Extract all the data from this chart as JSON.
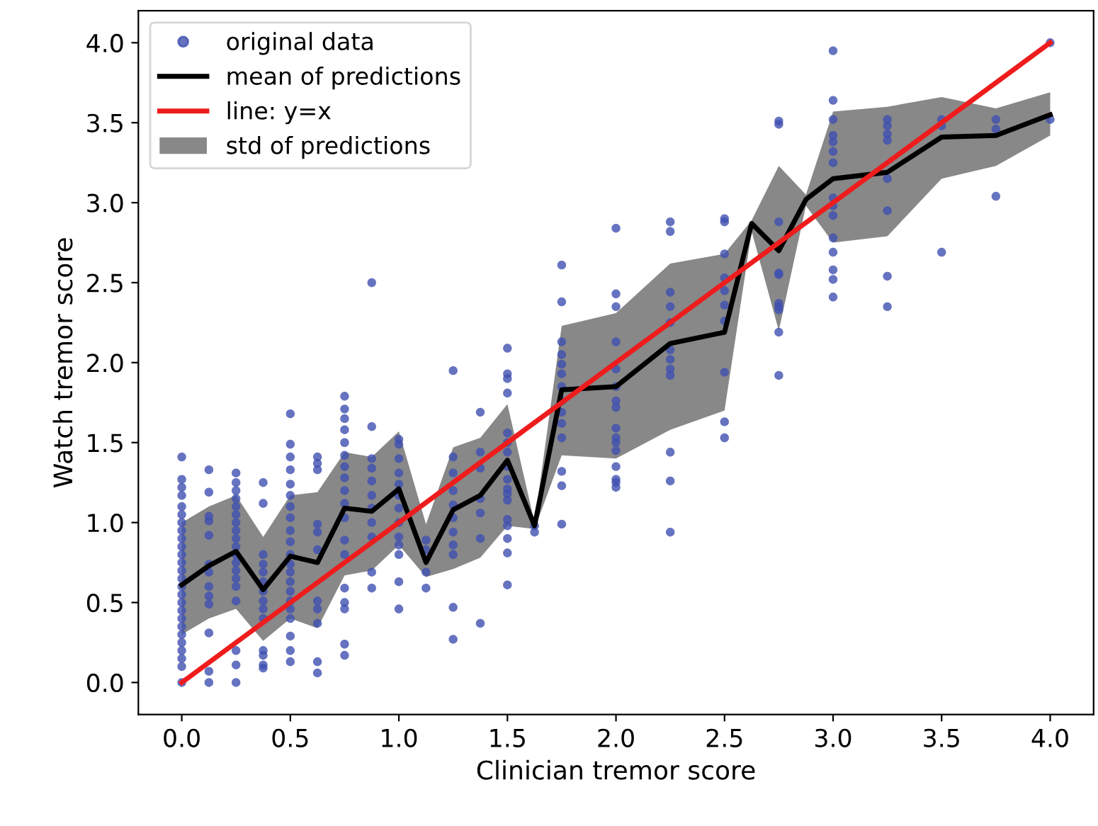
{
  "chart_data": {
    "type": "scatter",
    "xlabel": "Clinician tremor score",
    "ylabel": "Watch tremor score",
    "xlim": [
      -0.2,
      4.2
    ],
    "ylim": [
      -0.2,
      4.2
    ],
    "xticks": [
      {
        "value": 0,
        "label": "0.0"
      },
      {
        "value": 0.5,
        "label": "0.5"
      },
      {
        "value": 1,
        "label": "1.0"
      },
      {
        "value": 1.5,
        "label": "1.5"
      },
      {
        "value": 2,
        "label": "2.0"
      },
      {
        "value": 2.5,
        "label": "2.5"
      },
      {
        "value": 3,
        "label": "3.0"
      },
      {
        "value": 3.5,
        "label": "3.5"
      },
      {
        "value": 4,
        "label": "4.0"
      }
    ],
    "yticks": [
      {
        "value": 0,
        "label": "0.0"
      },
      {
        "value": 0.5,
        "label": "0.5"
      },
      {
        "value": 1,
        "label": "1.0"
      },
      {
        "value": 1.5,
        "label": "1.5"
      },
      {
        "value": 2,
        "label": "2.0"
      },
      {
        "value": 2.5,
        "label": "2.5"
      },
      {
        "value": 3,
        "label": "3.0"
      },
      {
        "value": 3.5,
        "label": "3.5"
      },
      {
        "value": 4,
        "label": "4.0"
      }
    ],
    "grid": false,
    "legend": "top left",
    "series": [
      {
        "name": "original data",
        "color": "#4050b0",
        "marker": "circle",
        "x": [
          0,
          0,
          0,
          0,
          0,
          0,
          0,
          0,
          0,
          0,
          0,
          0,
          0,
          0,
          0,
          0,
          0,
          0,
          0,
          0,
          0,
          0,
          0,
          0,
          0,
          0,
          0.125,
          0.125,
          0.125,
          0.125,
          0.125,
          0.125,
          0.125,
          0.125,
          0.125,
          0.125,
          0.125,
          0.125,
          0.125,
          0.25,
          0.25,
          0.25,
          0.25,
          0.25,
          0.25,
          0.25,
          0.25,
          0.25,
          0.25,
          0.25,
          0.25,
          0.25,
          0.25,
          0.25,
          0.25,
          0.25,
          0.25,
          0.25,
          0.375,
          0.375,
          0.375,
          0.375,
          0.375,
          0.375,
          0.375,
          0.375,
          0.375,
          0.375,
          0.375,
          0.375,
          0.375,
          0.375,
          0.5,
          0.5,
          0.5,
          0.5,
          0.5,
          0.5,
          0.5,
          0.5,
          0.5,
          0.5,
          0.5,
          0.5,
          0.5,
          0.5,
          0.5,
          0.5,
          0.5,
          0.5,
          0.5,
          0.5,
          0.5,
          0.625,
          0.625,
          0.625,
          0.625,
          0.625,
          0.625,
          0.625,
          0.625,
          0.625,
          0.625,
          0.625,
          0.75,
          0.75,
          0.75,
          0.75,
          0.75,
          0.75,
          0.75,
          0.75,
          0.75,
          0.75,
          0.75,
          0.75,
          0.75,
          0.75,
          0.75,
          0.75,
          0.75,
          0.75,
          0.875,
          0.875,
          0.875,
          0.875,
          0.875,
          0.875,
          0.875,
          0.875,
          0.875,
          0.875,
          0.875,
          1.0,
          1.0,
          1.0,
          1.0,
          1.0,
          1.0,
          1.0,
          1.0,
          1.0,
          1.0,
          1.0,
          1.0,
          1.0,
          1.125,
          1.125,
          1.125,
          1.125,
          1.25,
          1.25,
          1.25,
          1.25,
          1.25,
          1.25,
          1.25,
          1.25,
          1.25,
          1.25,
          1.25,
          1.375,
          1.375,
          1.375,
          1.375,
          1.375,
          1.375,
          1.375,
          1.5,
          1.5,
          1.5,
          1.5,
          1.5,
          1.5,
          1.5,
          1.5,
          1.5,
          1.5,
          1.5,
          1.5,
          1.5,
          1.5,
          1.5,
          1.5,
          1.5,
          1.625,
          1.625,
          1.75,
          1.75,
          1.75,
          1.75,
          1.75,
          1.75,
          1.75,
          1.75,
          1.75,
          1.75,
          1.75,
          1.75,
          1.75,
          1.75,
          2.0,
          2.0,
          2.0,
          2.0,
          2.0,
          2.0,
          2.0,
          2.0,
          2.0,
          2.0,
          2.0,
          2.0,
          2.0,
          2.0,
          2.0,
          2.0,
          2.25,
          2.25,
          2.25,
          2.25,
          2.25,
          2.25,
          2.25,
          2.25,
          2.25,
          2.25,
          2.25,
          2.25,
          2.5,
          2.5,
          2.5,
          2.5,
          2.5,
          2.5,
          2.5,
          2.5,
          2.5,
          2.5,
          2.75,
          2.75,
          2.75,
          2.75,
          2.75,
          2.75,
          2.75,
          2.75,
          2.75,
          2.75,
          3.0,
          3.0,
          3.0,
          3.0,
          3.0,
          3.0,
          3.0,
          3.0,
          3.0,
          3.0,
          3.0,
          3.0,
          3.0,
          3.0,
          3.0,
          3.25,
          3.25,
          3.25,
          3.25,
          3.25,
          3.25,
          3.25,
          3.25,
          3.5,
          3.5,
          3.5,
          3.75,
          3.75,
          3.75,
          4.0,
          4.0
        ],
        "values": [
          1.41,
          1.27,
          1.22,
          1.17,
          1.1,
          1.05,
          1.0,
          0.95,
          0.9,
          0.85,
          0.8,
          0.75,
          0.7,
          0.65,
          0.6,
          0.55,
          0.5,
          0.45,
          0.4,
          0.35,
          0.3,
          0.25,
          0.2,
          0.15,
          0.1,
          0.0,
          1.33,
          1.19,
          1.04,
          1.01,
          0.92,
          0.74,
          0.69,
          0.6,
          0.54,
          0.49,
          0.31,
          0.07,
          0.0,
          1.31,
          1.25,
          1.2,
          1.15,
          1.1,
          1.05,
          1.0,
          0.95,
          0.9,
          0.85,
          0.8,
          0.75,
          0.7,
          0.65,
          0.6,
          0.51,
          0.2,
          0.11,
          0.0,
          1.25,
          1.12,
          0.8,
          0.74,
          0.69,
          0.63,
          0.57,
          0.51,
          0.46,
          0.4,
          0.2,
          0.17,
          0.11,
          0.09,
          1.68,
          1.49,
          1.41,
          1.33,
          1.24,
          1.17,
          1.1,
          1.03,
          0.95,
          0.88,
          0.8,
          0.74,
          0.69,
          0.63,
          0.57,
          0.51,
          0.46,
          0.4,
          0.29,
          0.2,
          0.13,
          1.41,
          1.37,
          1.33,
          0.99,
          0.94,
          0.83,
          0.51,
          0.46,
          0.37,
          0.13,
          0.06,
          1.79,
          1.71,
          1.65,
          1.58,
          1.5,
          1.42,
          1.35,
          1.28,
          1.2,
          1.12,
          1.03,
          0.89,
          0.8,
          0.59,
          0.5,
          0.46,
          0.24,
          0.17,
          2.5,
          1.6,
          1.4,
          1.34,
          1.26,
          1.17,
          1.09,
          1.0,
          0.91,
          0.69,
          0.59,
          1.52,
          1.49,
          1.4,
          1.31,
          1.24,
          1.17,
          1.09,
          1.0,
          0.91,
          0.86,
          0.8,
          0.63,
          0.46,
          0.89,
          0.83,
          0.69,
          0.59,
          1.95,
          1.41,
          1.31,
          1.2,
          1.11,
          1.03,
          0.94,
          0.86,
          0.8,
          0.47,
          0.27,
          1.69,
          1.44,
          1.34,
          1.15,
          1.06,
          0.9,
          0.37,
          2.09,
          1.93,
          1.9,
          1.81,
          1.56,
          1.5,
          1.44,
          1.35,
          1.27,
          1.21,
          1.18,
          1.14,
          1.02,
          0.98,
          0.9,
          0.81,
          0.61,
          0.98,
          0.94,
          2.61,
          2.38,
          2.13,
          2.05,
          1.99,
          1.93,
          1.85,
          1.76,
          1.69,
          1.62,
          1.53,
          1.32,
          1.23,
          0.99,
          2.84,
          2.43,
          2.35,
          2.13,
          1.96,
          1.85,
          1.76,
          1.72,
          1.59,
          1.53,
          1.5,
          1.45,
          1.35,
          1.27,
          1.25,
          1.22,
          2.88,
          2.82,
          2.44,
          2.35,
          2.25,
          2.08,
          2.02,
          1.96,
          1.92,
          1.44,
          1.26,
          0.94,
          2.9,
          2.88,
          2.68,
          2.53,
          2.45,
          2.36,
          2.26,
          1.94,
          1.63,
          1.53,
          3.51,
          3.49,
          2.88,
          2.56,
          2.55,
          2.37,
          2.35,
          2.33,
          2.19,
          1.92,
          3.95,
          3.64,
          3.52,
          3.42,
          3.38,
          3.32,
          3.25,
          3.03,
          2.98,
          2.92,
          2.78,
          2.69,
          2.58,
          2.52,
          2.41,
          3.52,
          3.48,
          3.43,
          3.39,
          3.15,
          2.95,
          2.54,
          2.35,
          3.52,
          3.48,
          2.69,
          3.52,
          3.46,
          3.04,
          4.0,
          3.52
        ]
      },
      {
        "name": "mean of predictions",
        "type": "line",
        "color": "#000000",
        "line_style": "solid",
        "x": [
          0,
          0.125,
          0.25,
          0.375,
          0.5,
          0.625,
          0.75,
          0.875,
          1.0,
          1.125,
          1.25,
          1.375,
          1.5,
          1.625,
          1.75,
          2.0,
          2.25,
          2.5,
          2.625,
          2.75,
          2.875,
          3.0,
          3.25,
          3.5,
          3.75,
          4.0
        ],
        "values": [
          0.61,
          0.73,
          0.82,
          0.58,
          0.79,
          0.75,
          1.09,
          1.07,
          1.21,
          0.75,
          1.08,
          1.17,
          1.39,
          0.98,
          1.83,
          1.85,
          2.12,
          2.19,
          2.87,
          2.7,
          3.02,
          3.15,
          3.19,
          3.41,
          3.42,
          3.55
        ],
        "lower": [
          0.3,
          0.4,
          0.46,
          0.26,
          0.4,
          0.34,
          0.67,
          0.7,
          0.86,
          0.66,
          0.71,
          0.78,
          0.98,
          0.96,
          1.42,
          1.4,
          1.58,
          1.7,
          2.82,
          2.2,
          2.98,
          2.75,
          2.79,
          3.15,
          3.23,
          3.42
        ],
        "upper": [
          1.0,
          1.1,
          1.17,
          0.91,
          1.17,
          1.19,
          1.44,
          1.41,
          1.57,
          0.99,
          1.47,
          1.53,
          1.74,
          1.0,
          2.23,
          2.31,
          2.62,
          2.68,
          2.89,
          3.23,
          3.05,
          3.57,
          3.6,
          3.66,
          3.59,
          3.69
        ]
      },
      {
        "name": "line: y=x",
        "type": "line",
        "color": "#ee1c1c",
        "line_style": "solid",
        "x": [
          0,
          4
        ],
        "values": [
          0,
          4
        ]
      },
      {
        "name": "std of predictions",
        "type": "area",
        "color": "#888888"
      }
    ]
  }
}
